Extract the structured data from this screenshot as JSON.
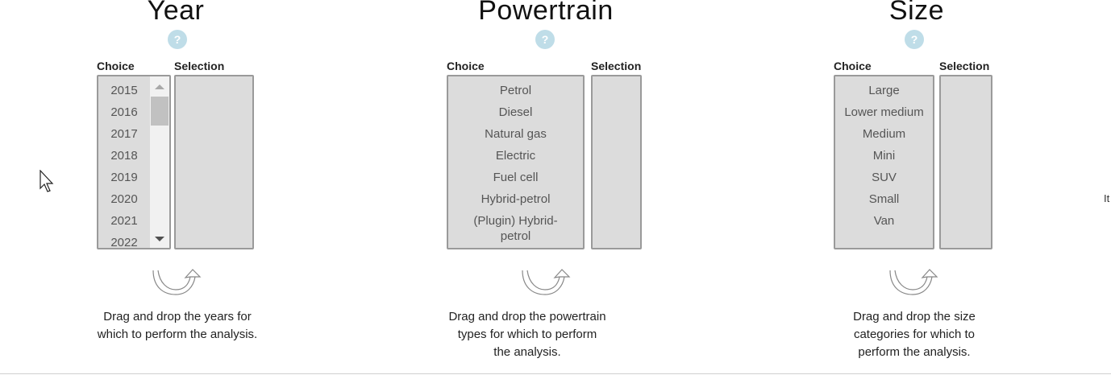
{
  "year": {
    "title": "Year",
    "help": "?",
    "choice_label": "Choice",
    "selection_label": "Selection",
    "choices": [
      "2015",
      "2016",
      "2017",
      "2018",
      "2019",
      "2020",
      "2021",
      "2022"
    ],
    "instruction": "Drag and drop the years for which to perform the analysis."
  },
  "powertrain": {
    "title": "Powertrain",
    "help": "?",
    "choice_label": "Choice",
    "selection_label": "Selection",
    "choices": [
      "Petrol",
      "Diesel",
      "Natural gas",
      "Electric",
      "Fuel cell",
      "Hybrid-petrol",
      "(Plugin) Hybrid-petrol"
    ],
    "instruction": "Drag and drop the powertrain types for which to perform the analysis."
  },
  "size": {
    "title": "Size",
    "help": "?",
    "choice_label": "Choice",
    "selection_label": "Selection",
    "choices": [
      "Large",
      "Lower medium",
      "Medium",
      "Mini",
      "SUV",
      "Small",
      "Van"
    ],
    "instruction": "Drag and drop the size categories for which to perform the analysis."
  },
  "edge_text": "It"
}
